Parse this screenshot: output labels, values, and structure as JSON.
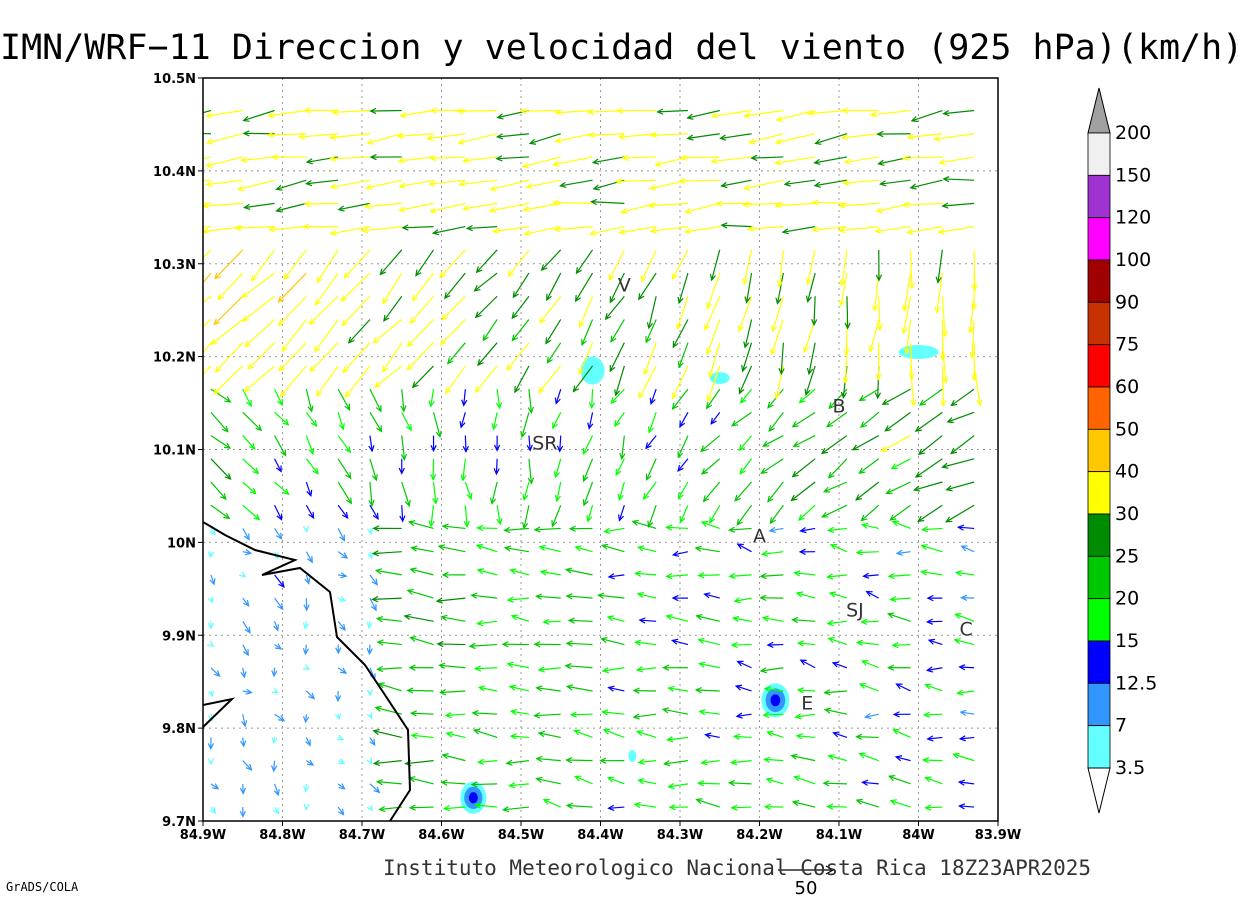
{
  "title": "IMN/WRF−11 Direccion y velocidad del viento (925 hPa)(km/h)",
  "footer": "Instituto Meteorologico Nacional Costa Rica 18Z23APR2025",
  "software_label": "GrADS/COLA",
  "reference_vector": {
    "label": "50",
    "value_kmh": 50
  },
  "map": {
    "lon_range": [
      -84.9,
      -83.9
    ],
    "lat_range": [
      9.7,
      10.5
    ],
    "lon_ticks": [
      "84.9W",
      "84.8W",
      "84.7W",
      "84.6W",
      "84.5W",
      "84.4W",
      "84.3W",
      "84.2W",
      "84.1W",
      "84W",
      "83.9W"
    ],
    "lat_ticks": [
      "9.7N",
      "9.8N",
      "9.9N",
      "10N",
      "10.1N",
      "10.2N",
      "10.3N",
      "10.4N",
      "10.5N"
    ],
    "grid": "dotted",
    "places": [
      {
        "label": "V",
        "lon": -84.37,
        "lat": 10.27
      },
      {
        "label": "SR",
        "lon": -84.47,
        "lat": 10.1
      },
      {
        "label": "B",
        "lon": -84.1,
        "lat": 10.14
      },
      {
        "label": "A",
        "lon": -84.2,
        "lat": 10.0
      },
      {
        "label": "SJ",
        "lon": -84.08,
        "lat": 9.92
      },
      {
        "label": "C",
        "lon": -83.94,
        "lat": 9.9
      },
      {
        "label": "E",
        "lon": -84.14,
        "lat": 9.82
      }
    ]
  },
  "colorbar": {
    "labels": [
      "200",
      "150",
      "120",
      "100",
      "90",
      "75",
      "60",
      "50",
      "40",
      "30",
      "25",
      "20",
      "15",
      "12.5",
      "7",
      "3.5"
    ],
    "colors": [
      "#f0f0f0",
      "#a032d2",
      "#ff00ff",
      "#a00000",
      "#c83200",
      "#ff0000",
      "#ff6400",
      "#ffc800",
      "#ffff00",
      "#008c00",
      "#00c800",
      "#00ff00",
      "#0000ff",
      "#3296ff",
      "#64ffff"
    ],
    "top_cap_color": "#a0a0a0",
    "bottom_cap_color": "#ffffff"
  }
}
